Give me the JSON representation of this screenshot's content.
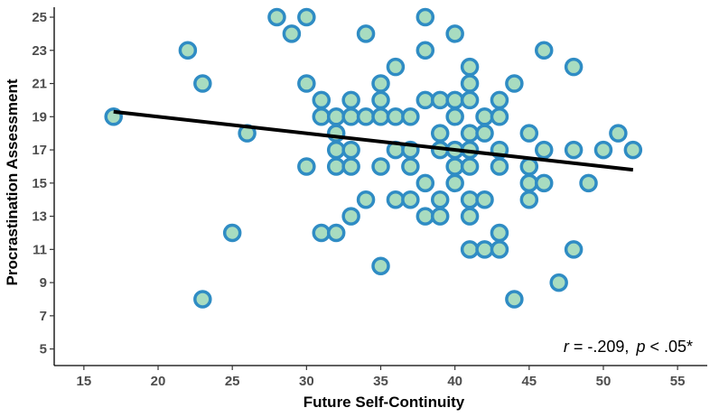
{
  "chart_data": {
    "type": "scatter",
    "title": "",
    "xlabel": "Future Self-Continuity",
    "ylabel": "Procrastination Assessment",
    "xlim": [
      13,
      57
    ],
    "ylim": [
      4,
      25.6
    ],
    "xticks": [
      "15",
      "20",
      "25",
      "30",
      "35",
      "40",
      "45",
      "50",
      "55"
    ],
    "yticks": [
      "5",
      "7",
      "9",
      "11",
      "13",
      "15",
      "17",
      "19",
      "21",
      "23",
      "25"
    ],
    "grid": false,
    "points": [
      [
        17,
        19
      ],
      [
        22,
        23
      ],
      [
        23,
        21
      ],
      [
        23,
        8
      ],
      [
        25,
        12
      ],
      [
        26,
        18
      ],
      [
        28,
        25
      ],
      [
        29,
        24
      ],
      [
        30,
        25
      ],
      [
        30,
        21
      ],
      [
        30,
        16
      ],
      [
        31,
        20
      ],
      [
        31,
        19
      ],
      [
        31,
        12
      ],
      [
        32,
        19
      ],
      [
        32,
        18
      ],
      [
        32,
        17
      ],
      [
        32,
        16
      ],
      [
        32,
        12
      ],
      [
        33,
        20
      ],
      [
        33,
        19
      ],
      [
        33,
        17
      ],
      [
        33,
        16
      ],
      [
        33,
        13
      ],
      [
        34,
        24
      ],
      [
        34,
        19
      ],
      [
        34,
        14
      ],
      [
        35,
        21
      ],
      [
        35,
        20
      ],
      [
        35,
        19
      ],
      [
        35,
        16
      ],
      [
        35,
        10
      ],
      [
        36,
        22
      ],
      [
        36,
        19
      ],
      [
        36,
        17
      ],
      [
        36,
        14
      ],
      [
        37,
        19
      ],
      [
        37,
        17
      ],
      [
        37,
        16
      ],
      [
        37,
        14
      ],
      [
        38,
        25
      ],
      [
        38,
        23
      ],
      [
        38,
        20
      ],
      [
        38,
        15
      ],
      [
        38,
        13
      ],
      [
        39,
        20
      ],
      [
        39,
        18
      ],
      [
        39,
        17
      ],
      [
        39,
        14
      ],
      [
        39,
        13
      ],
      [
        40,
        24
      ],
      [
        40,
        20
      ],
      [
        40,
        19
      ],
      [
        40,
        17
      ],
      [
        40,
        16
      ],
      [
        40,
        15
      ],
      [
        41,
        22
      ],
      [
        41,
        21
      ],
      [
        41,
        20
      ],
      [
        41,
        18
      ],
      [
        41,
        17
      ],
      [
        41,
        16
      ],
      [
        41,
        14
      ],
      [
        41,
        13
      ],
      [
        41,
        11
      ],
      [
        42,
        19
      ],
      [
        42,
        18
      ],
      [
        42,
        14
      ],
      [
        42,
        11
      ],
      [
        43,
        20
      ],
      [
        43,
        19
      ],
      [
        43,
        17
      ],
      [
        43,
        16
      ],
      [
        43,
        12
      ],
      [
        43,
        11
      ],
      [
        44,
        21
      ],
      [
        44,
        8
      ],
      [
        45,
        18
      ],
      [
        45,
        16
      ],
      [
        45,
        15
      ],
      [
        45,
        14
      ],
      [
        46,
        23
      ],
      [
        46,
        17
      ],
      [
        46,
        15
      ],
      [
        47,
        9
      ],
      [
        48,
        22
      ],
      [
        48,
        17
      ],
      [
        48,
        11
      ],
      [
        49,
        15
      ],
      [
        50,
        17
      ],
      [
        51,
        18
      ],
      [
        52,
        17
      ]
    ],
    "fit_line": {
      "x": [
        17,
        52
      ],
      "y": [
        19.3,
        15.8
      ]
    },
    "annotation": {
      "r_label": "r",
      "r_value": " = -.209,",
      "p_label": "p",
      "p_value": " < .05*"
    },
    "colors": {
      "point_fill": "#a8dcc0",
      "point_stroke": "#2f8cc4",
      "fit_line": "#000000",
      "axis": "#000000"
    }
  }
}
